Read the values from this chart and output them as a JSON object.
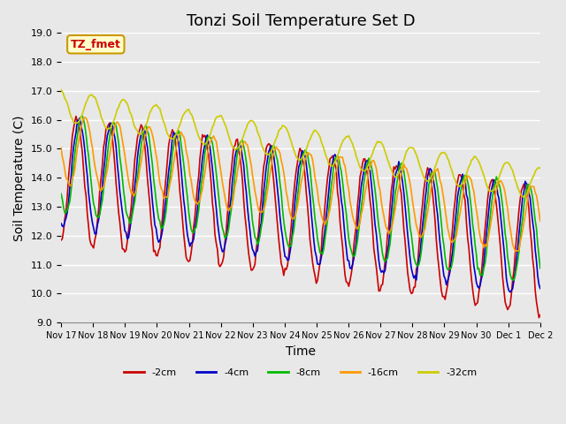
{
  "title": "Tonzi Soil Temperature Set D",
  "xlabel": "Time",
  "ylabel": "Soil Temperature (C)",
  "ylim": [
    9.0,
    19.0
  ],
  "yticks": [
    9.0,
    10.0,
    11.0,
    12.0,
    13.0,
    14.0,
    15.0,
    16.0,
    17.0,
    18.0,
    19.0
  ],
  "xtick_labels": [
    "Nov 17",
    "Nov 18",
    "Nov 19",
    "Nov 20",
    "Nov 21",
    "Nov 22",
    "Nov 23",
    "Nov 24",
    "Nov 25",
    "Nov 26",
    "Nov 27",
    "Nov 28",
    "Nov 29",
    "Nov 30",
    "Dec 1",
    "Dec 2"
  ],
  "legend_labels": [
    "-2cm",
    "-4cm",
    "-8cm",
    "-16cm",
    "-32cm"
  ],
  "legend_colors": [
    "#cc0000",
    "#0000cc",
    "#00bb00",
    "#ff9900",
    "#cccc00"
  ],
  "line_colors": [
    "#cc0000",
    "#0000cc",
    "#00bb00",
    "#ff9900",
    "#cccc00"
  ],
  "background_color": "#e8e8e8",
  "plot_bg_color": "#e8e8e8",
  "grid_color": "#ffffff",
  "annotation_text": "TZ_fmet",
  "annotation_bg": "#ffffcc",
  "annotation_border": "#cc9900",
  "annotation_text_color": "#cc0000",
  "n_points": 384,
  "days": 15,
  "title_fontsize": 13,
  "axis_fontsize": 10
}
